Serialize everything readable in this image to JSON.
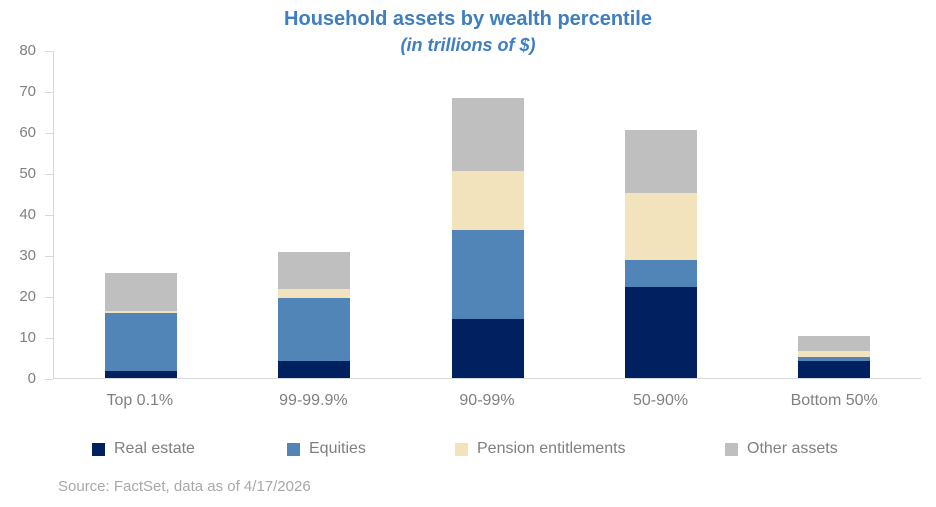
{
  "source": "Source: FactSet, data as of 4/17/2026",
  "colors": {
    "title_text": "#3E7EC1",
    "axis_text": "#808080",
    "axis_line": "#D9D9D9",
    "legend_text": "#7F7F7F",
    "source_text": "#A8A8A8"
  },
  "chart_data": {
    "type": "bar",
    "stacked": true,
    "title": "Household assets by wealth percentile",
    "subtitle": "(in trillions of $)",
    "categories": [
      "Top 0.1%",
      "99-99.9%",
      "90-99%",
      "50-90%",
      "Bottom 50%"
    ],
    "series": [
      {
        "name": "Real estate",
        "color": "#002060",
        "values": [
          1.8,
          4.2,
          14.3,
          22.2,
          4.2
        ]
      },
      {
        "name": "Equities",
        "color": "#5185B8",
        "values": [
          14.0,
          15.2,
          21.7,
          6.6,
          1.0
        ]
      },
      {
        "name": "Pension entitlements",
        "color": "#F3E3BD",
        "values": [
          0.6,
          2.3,
          14.4,
          16.4,
          1.4
        ]
      },
      {
        "name": "Other assets",
        "color": "#BFBFBF",
        "values": [
          9.2,
          9.0,
          17.9,
          15.3,
          3.6
        ]
      }
    ],
    "stack_totals": [
      25.6,
      30.7,
      68.3,
      60.5,
      10.2
    ],
    "xlabel": "",
    "ylabel": "",
    "ylim": [
      0,
      80
    ],
    "ytick_step": 10,
    "grid": false,
    "legend_position": "bottom"
  }
}
